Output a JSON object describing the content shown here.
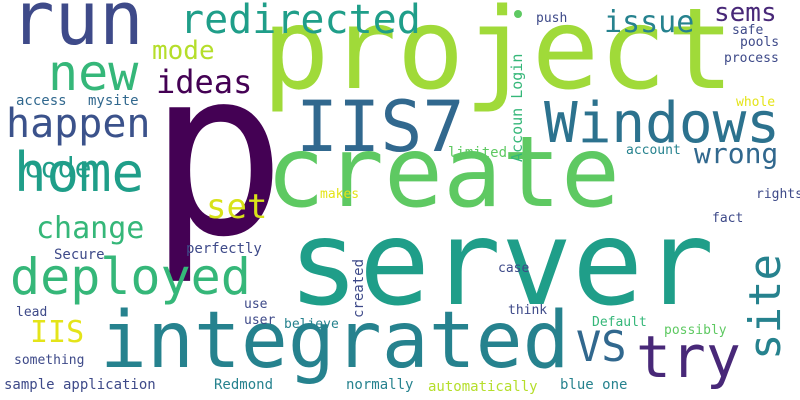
{
  "words": {
    "p": "p",
    "project": "project",
    "server": "server",
    "create": "create",
    "integrated": "integrated",
    "run": "run",
    "iis7": "IIS7",
    "windows": "Windows",
    "new": "new",
    "home": "home",
    "happen": "happen",
    "deployed": "deployed",
    "redirected": "redirected",
    "try": "try",
    "site": "site",
    "vs": "VS",
    "issue": "issue",
    "mode": "mode",
    "ideas": "ideas",
    "code": "code",
    "change": "change",
    "wrong": "wrong",
    "set": "set",
    "sems": "sems",
    "iis": "IIS",
    "access": "access",
    "mysite": "mysite",
    "push": "push",
    "safe": "safe",
    "pools": "pools",
    "process": "process",
    "accoun_login": "Accoun Login",
    "whole": "whole",
    "limited": "limited",
    "account": "account",
    "makes": "makes",
    "rights": "rights",
    "fact": "fact",
    "perfectly": "perfectly",
    "secure": "Secure",
    "case": "case",
    "created": "created",
    "use": "use",
    "user": "user",
    "lead": "lead",
    "think": "think",
    "default": "Default",
    "possibly": "possibly",
    "believe": "believe",
    "something": "something",
    "sample_application": "sample application",
    "redmond": "Redmond",
    "normally": "normally",
    "automatically": "automatically",
    "blue_one": "blue one"
  },
  "colors": {
    "deep_purple": "#440154",
    "indigo": "#482878",
    "slate_blue": "#3e4a89",
    "steel_blue": "#31688e",
    "teal_blue": "#26828e",
    "teal": "#1f9e89",
    "sea_green": "#35b779",
    "green": "#6ece58",
    "lime": "#b5de2b",
    "yellow": "#e4e419"
  }
}
